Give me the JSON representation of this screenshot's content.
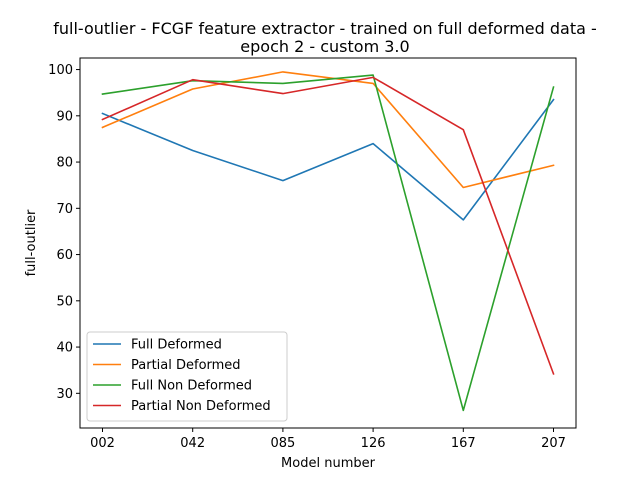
{
  "chart_data": {
    "type": "line",
    "title_lines": [
      "full-outlier - FCGF feature extractor -  trained on full deformed data -",
      "epoch 2 - custom 3.0"
    ],
    "xlabel": "Model number",
    "ylabel": "full-outlier",
    "categories": [
      "002",
      "042",
      "085",
      "126",
      "167",
      "207"
    ],
    "ylim": [
      22.5,
      102.5
    ],
    "yticks": [
      30,
      40,
      50,
      60,
      70,
      80,
      90,
      100
    ],
    "grid": false,
    "legend_position": "lower-left",
    "series": [
      {
        "name": "Full Deformed",
        "color": "#1f77b4",
        "values": [
          90.5,
          82.5,
          76.0,
          84.0,
          67.5,
          93.5
        ]
      },
      {
        "name": "Partial Deformed",
        "color": "#ff7f0e",
        "values": [
          87.5,
          95.8,
          99.5,
          97.0,
          74.5,
          79.3
        ]
      },
      {
        "name": "Full Non Deformed",
        "color": "#2ca02c",
        "values": [
          94.7,
          97.6,
          97.0,
          98.8,
          26.3,
          96.2
        ]
      },
      {
        "name": "Partial Non Deformed",
        "color": "#d62728",
        "values": [
          89.2,
          97.8,
          94.8,
          98.3,
          87.0,
          34.2
        ]
      }
    ]
  }
}
